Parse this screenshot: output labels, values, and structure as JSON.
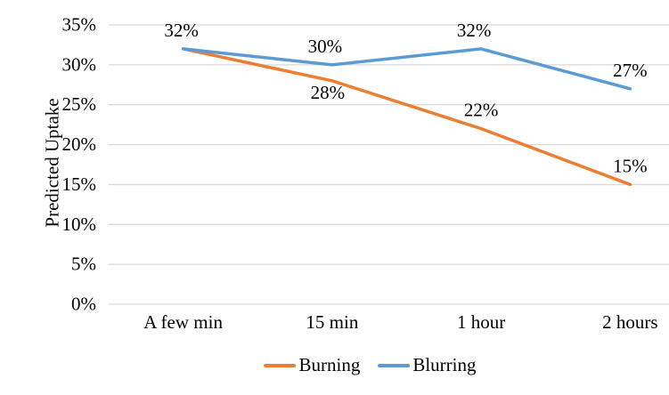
{
  "chart_data": {
    "type": "line",
    "title": "",
    "xlabel": "",
    "ylabel": "Predicted Uptake",
    "categories": [
      "A few min",
      "15 min",
      "1 hour",
      "2 hours"
    ],
    "ylim": [
      0,
      35
    ],
    "y_ticks": [
      {
        "value": 35,
        "label": "35%"
      },
      {
        "value": 30,
        "label": "30%"
      },
      {
        "value": 25,
        "label": "25%"
      },
      {
        "value": 20,
        "label": "20%"
      },
      {
        "value": 15,
        "label": "15%"
      },
      {
        "value": 10,
        "label": "10%"
      },
      {
        "value": 5,
        "label": "5%"
      },
      {
        "value": 0,
        "label": "0%"
      }
    ],
    "grid": "horizontal",
    "gridline_color": "#D9D9D9",
    "background_color": "#FFFFFF",
    "text_color": "#000000",
    "legend_position": "bottom",
    "series": [
      {
        "name": "Burning",
        "color": "#ED7D31",
        "values": [
          32,
          28,
          22,
          15
        ],
        "data_labels": [
          {
            "text": "32%",
            "pos": "above",
            "dx": -2
          },
          {
            "text": "28%",
            "pos": "below",
            "dx": -5
          },
          {
            "text": "22%",
            "pos": "above",
            "dx": 0
          },
          {
            "text": "15%",
            "pos": "above",
            "dx": 0
          }
        ]
      },
      {
        "name": "Blurring",
        "color": "#5B9BD5",
        "values": [
          32,
          30,
          32,
          27
        ],
        "data_labels": [
          null,
          {
            "text": "30%",
            "pos": "above",
            "dx": -8
          },
          {
            "text": "32%",
            "pos": "above",
            "dx": -8
          },
          {
            "text": "27%",
            "pos": "above",
            "dx": 0
          }
        ]
      }
    ]
  }
}
